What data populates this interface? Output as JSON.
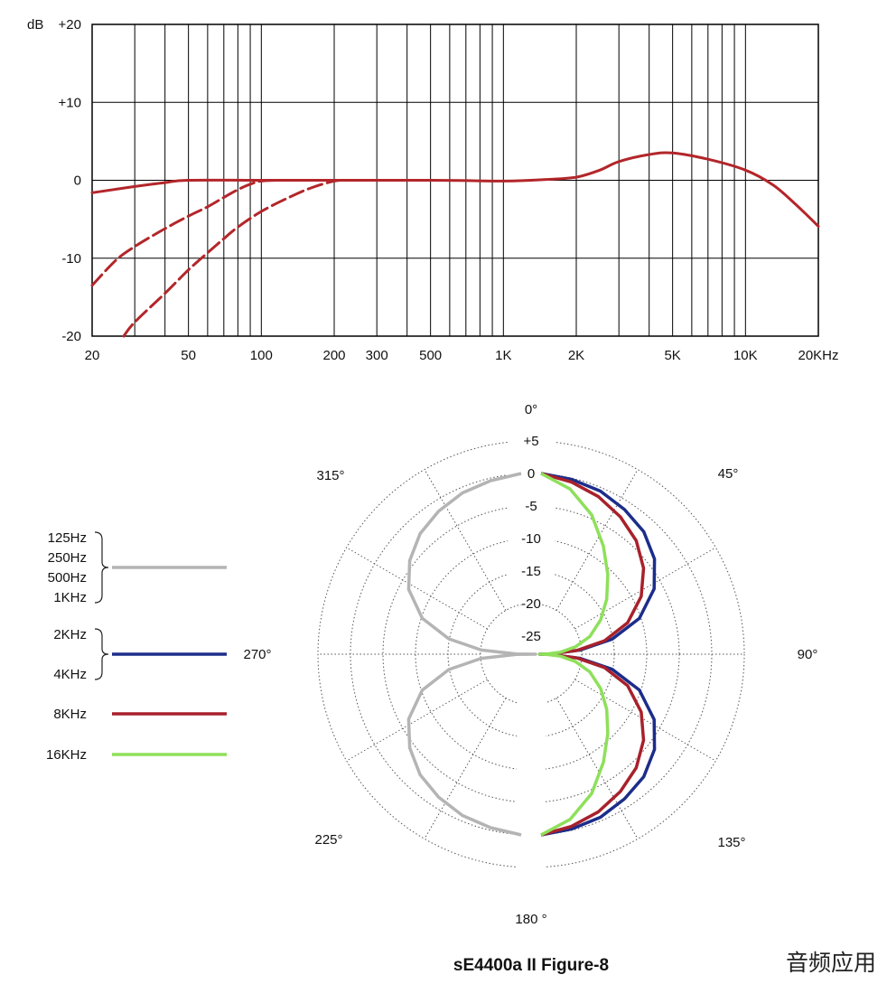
{
  "chart_data": [
    {
      "type": "line",
      "title": "",
      "xlabel": "",
      "ylabel": "dB",
      "x_scale": "log",
      "xlim": [
        20,
        20000
      ],
      "ylim": [
        -20,
        20
      ],
      "grid": true,
      "x_tick_values": [
        20,
        30,
        40,
        50,
        60,
        70,
        80,
        90,
        100,
        200,
        300,
        400,
        500,
        600,
        700,
        800,
        900,
        1000,
        2000,
        3000,
        4000,
        5000,
        6000,
        7000,
        8000,
        9000,
        10000,
        20000
      ],
      "x_tick_labels": [
        {
          "value": 20,
          "label": "20"
        },
        {
          "value": 50,
          "label": "50"
        },
        {
          "value": 100,
          "label": "100"
        },
        {
          "value": 200,
          "label": "200"
        },
        {
          "value": 300,
          "label": "300"
        },
        {
          "value": 500,
          "label": "500"
        },
        {
          "value": 1000,
          "label": "1K"
        },
        {
          "value": 2000,
          "label": "2K"
        },
        {
          "value": 5000,
          "label": "5K"
        },
        {
          "value": 10000,
          "label": "10K"
        },
        {
          "value": 20000,
          "label": "20KHz"
        }
      ],
      "y_tick_labels": [
        {
          "value": 20,
          "label": "+20"
        },
        {
          "value": 10,
          "label": "+10"
        },
        {
          "value": 0,
          "label": "0"
        },
        {
          "value": -10,
          "label": "-10"
        },
        {
          "value": -20,
          "label": "-20"
        }
      ],
      "series": [
        {
          "style": "solid",
          "color": "#b3262a",
          "points": [
            [
              20,
              -1.6
            ],
            [
              30,
              -0.8
            ],
            [
              40,
              -0.3
            ],
            [
              50,
              0
            ],
            [
              100,
              0
            ],
            [
              500,
              0
            ],
            [
              1000,
              -0.1
            ],
            [
              1500,
              0.1
            ],
            [
              2000,
              0.4
            ],
            [
              2500,
              1.3
            ],
            [
              3000,
              2.4
            ],
            [
              4000,
              3.3
            ],
            [
              5000,
              3.5
            ],
            [
              7000,
              2.7
            ],
            [
              10000,
              1.3
            ],
            [
              13000,
              -0.6
            ],
            [
              16000,
              -3
            ],
            [
              20000,
              -5.9
            ]
          ]
        },
        {
          "style": "dashed",
          "color": "#b3262a",
          "points": [
            [
              20,
              -13.5
            ],
            [
              25,
              -10.3
            ],
            [
              30,
              -8.5
            ],
            [
              40,
              -6.2
            ],
            [
              50,
              -4.6
            ],
            [
              60,
              -3.4
            ],
            [
              70,
              -2.2
            ],
            [
              80,
              -1.2
            ],
            [
              90,
              -0.5
            ],
            [
              100,
              -0.1
            ],
            [
              120,
              0
            ]
          ]
        },
        {
          "style": "dashed",
          "color": "#b3262a",
          "points": [
            [
              27,
              -20
            ],
            [
              30,
              -18.2
            ],
            [
              40,
              -14.5
            ],
            [
              50,
              -11.5
            ],
            [
              60,
              -9.3
            ],
            [
              70,
              -7.5
            ],
            [
              80,
              -6
            ],
            [
              100,
              -4
            ],
            [
              130,
              -2.2
            ],
            [
              160,
              -1
            ],
            [
              200,
              -0.1
            ],
            [
              230,
              0
            ]
          ]
        }
      ]
    },
    {
      "type": "polar",
      "title": "sE4400a II Figure-8",
      "ring_values": [
        5,
        0,
        -5,
        -10,
        -15,
        -20,
        -25
      ],
      "ring_labels": [
        "+5",
        "0",
        "-5",
        "-10",
        "-15",
        "-20",
        "-25"
      ],
      "angle_labels": [
        {
          "angle": 0,
          "label": "0°"
        },
        {
          "angle": 45,
          "label": "45°"
        },
        {
          "angle": 90,
          "label": "90°"
        },
        {
          "angle": 135,
          "label": "135°"
        },
        {
          "angle": 180,
          "label": "180 °"
        },
        {
          "angle": 225,
          "label": "225°"
        },
        {
          "angle": 270,
          "label": "270°"
        },
        {
          "angle": 315,
          "label": "315°"
        }
      ],
      "series": [
        {
          "legend_labels": [
            "125Hz",
            "250Hz",
            "500Hz",
            "1KHz"
          ],
          "color": "#b4b4b4",
          "side": "left",
          "points": [
            [
              0,
              0
            ],
            [
              10,
              -0.7
            ],
            [
              20,
              -1.4
            ],
            [
              30,
              -2.4
            ],
            [
              40,
              -3.6
            ],
            [
              50,
              -5.4
            ],
            [
              60,
              -7.8
            ],
            [
              70,
              -11.6
            ],
            [
              78,
              -16.4
            ],
            [
              84,
              -21.6
            ],
            [
              88,
              -27
            ],
            [
              90,
              -30
            ],
            [
              92,
              -27
            ],
            [
              96,
              -21.6
            ],
            [
              102,
              -16.4
            ],
            [
              110,
              -11.6
            ],
            [
              120,
              -7.8
            ],
            [
              130,
              -5.4
            ],
            [
              140,
              -3.6
            ],
            [
              150,
              -2.4
            ],
            [
              160,
              -1.4
            ],
            [
              170,
              -0.7
            ],
            [
              180,
              0
            ]
          ]
        },
        {
          "legend_labels": [
            "2KHz",
            "4KHz"
          ],
          "color": "#1c2d8a",
          "side": "right",
          "points": [
            [
              0,
              0
            ],
            [
              10,
              -0.5
            ],
            [
              20,
              -1.1
            ],
            [
              30,
              -2.1
            ],
            [
              40,
              -3.2
            ],
            [
              50,
              -5
            ],
            [
              60,
              -7.7
            ],
            [
              70,
              -11.7
            ],
            [
              78,
              -16.6
            ],
            [
              84,
              -21.7
            ],
            [
              88,
              -26.3
            ],
            [
              90,
              -28
            ],
            [
              92,
              -26.3
            ],
            [
              96,
              -21.7
            ],
            [
              102,
              -16.6
            ],
            [
              110,
              -11.7
            ],
            [
              120,
              -7.7
            ],
            [
              130,
              -5
            ],
            [
              140,
              -3.2
            ],
            [
              150,
              -2.1
            ],
            [
              160,
              -1.1
            ],
            [
              170,
              -0.5
            ],
            [
              180,
              0
            ]
          ]
        },
        {
          "legend_labels": [
            "8KHz"
          ],
          "color": "#a8212b",
          "side": "right",
          "points": [
            [
              0,
              0
            ],
            [
              10,
              -0.9
            ],
            [
              20,
              -2
            ],
            [
              30,
              -3.4
            ],
            [
              40,
              -5
            ],
            [
              50,
              -7.2
            ],
            [
              60,
              -10
            ],
            [
              70,
              -13.6
            ],
            [
              78,
              -17.8
            ],
            [
              84,
              -22.2
            ],
            [
              88,
              -26.4
            ],
            [
              90,
              -28
            ],
            [
              92,
              -26.4
            ],
            [
              96,
              -22.2
            ],
            [
              102,
              -17.8
            ],
            [
              110,
              -13.6
            ],
            [
              120,
              -10
            ],
            [
              130,
              -7.2
            ],
            [
              140,
              -5
            ],
            [
              150,
              -3.4
            ],
            [
              160,
              -2
            ],
            [
              170,
              -0.9
            ],
            [
              180,
              0
            ]
          ]
        },
        {
          "legend_labels": [
            "16KHz"
          ],
          "color": "#8ee05a",
          "side": "right",
          "points": [
            [
              0,
              0
            ],
            [
              10,
              -2
            ],
            [
              20,
              -5
            ],
            [
              30,
              -8.6
            ],
            [
              40,
              -11.8
            ],
            [
              50,
              -14.6
            ],
            [
              60,
              -17.2
            ],
            [
              70,
              -19.8
            ],
            [
              78,
              -22.4
            ],
            [
              84,
              -24.8
            ],
            [
              88,
              -27
            ],
            [
              90,
              -28
            ],
            [
              92,
              -27
            ],
            [
              96,
              -24.8
            ],
            [
              102,
              -22.4
            ],
            [
              110,
              -19.8
            ],
            [
              120,
              -17.2
            ],
            [
              130,
              -14.6
            ],
            [
              140,
              -11.8
            ],
            [
              150,
              -8.6
            ],
            [
              160,
              -5
            ],
            [
              170,
              -2
            ],
            [
              180,
              0
            ]
          ]
        }
      ]
    }
  ],
  "watermark": "音频应用"
}
